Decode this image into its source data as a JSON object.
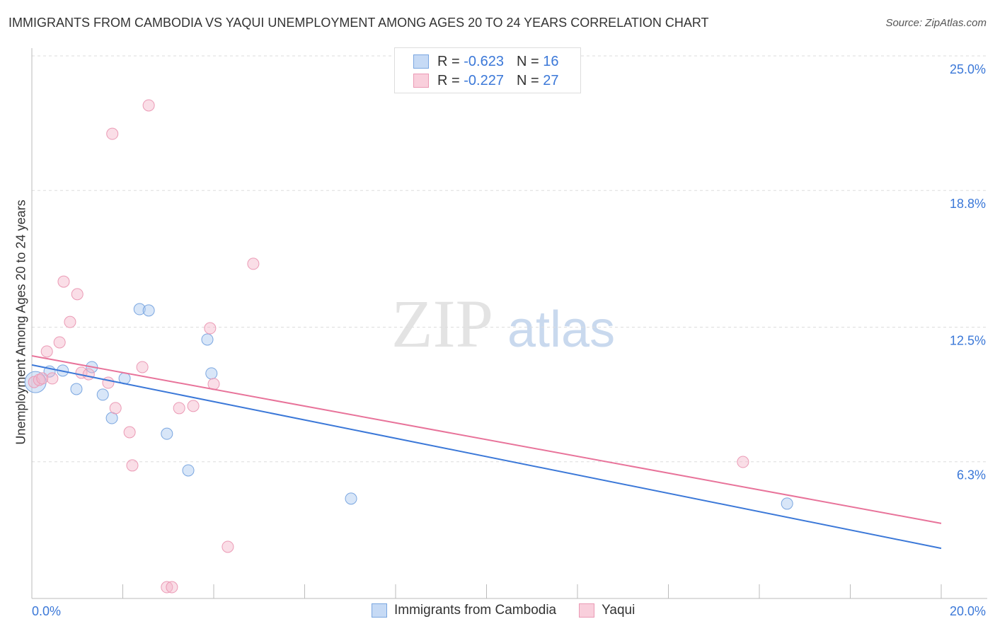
{
  "title": "IMMIGRANTS FROM CAMBODIA VS YAQUI UNEMPLOYMENT AMONG AGES 20 TO 24 YEARS CORRELATION CHART",
  "source": "Source: ZipAtlas.com",
  "watermark": "ZIPatlas",
  "legend": {
    "rows": [
      {
        "r_label": "R =",
        "r": "-0.623",
        "n_label": "N =",
        "n": "16"
      },
      {
        "r_label": "R =",
        "r": "-0.227",
        "n_label": "N =",
        "n": "27"
      }
    ]
  },
  "colors": {
    "blue": "#3b78d8",
    "blue_fill": "#a8c8f0",
    "pink": "#e8739a",
    "pink_fill": "#f4b6c9"
  },
  "chart_data": {
    "type": "scatter",
    "title": "IMMIGRANTS FROM CAMBODIA VS YAQUI UNEMPLOYMENT AMONG AGES 20 TO 24 YEARS CORRELATION CHART",
    "xlabel": "",
    "ylabel": "Unemployment Among Ages 20 to 24 years",
    "xlim": [
      0,
      20
    ],
    "ylim": [
      0,
      25
    ],
    "x_tick_labels": [
      "0.0%",
      "20.0%"
    ],
    "y_ticks": [
      6.3,
      12.5,
      18.8,
      25.0
    ],
    "y_tick_labels": [
      "6.3%",
      "12.5%",
      "18.8%",
      "25.0%"
    ],
    "grid": true,
    "legend_placement": "bottom",
    "series": [
      {
        "name": "Immigrants from Cambodia",
        "color": "#3b78d8",
        "points": [
          [
            0.08,
            9.97
          ],
          [
            0.39,
            10.46
          ],
          [
            0.68,
            10.5
          ],
          [
            0.98,
            9.65
          ],
          [
            1.32,
            10.66
          ],
          [
            1.56,
            9.39
          ],
          [
            1.76,
            8.31
          ],
          [
            2.04,
            10.14
          ],
          [
            2.37,
            13.33
          ],
          [
            2.57,
            13.27
          ],
          [
            2.97,
            7.59
          ],
          [
            3.44,
            5.9
          ],
          [
            3.86,
            11.93
          ],
          [
            3.95,
            10.37
          ],
          [
            7.02,
            4.6
          ],
          [
            16.61,
            4.37
          ]
        ],
        "trend": [
          [
            0,
            10.76
          ],
          [
            20,
            2.31
          ]
        ]
      },
      {
        "name": "Yaqui",
        "color": "#e8739a",
        "points": [
          [
            0.05,
            9.97
          ],
          [
            0.16,
            10.07
          ],
          [
            0.23,
            10.14
          ],
          [
            0.33,
            11.38
          ],
          [
            0.45,
            10.14
          ],
          [
            0.61,
            11.8
          ],
          [
            0.7,
            14.6
          ],
          [
            0.84,
            12.74
          ],
          [
            1.0,
            14.02
          ],
          [
            1.09,
            10.4
          ],
          [
            1.25,
            10.33
          ],
          [
            1.68,
            9.94
          ],
          [
            1.77,
            21.41
          ],
          [
            1.84,
            8.77
          ],
          [
            2.15,
            7.66
          ],
          [
            2.21,
            6.13
          ],
          [
            2.43,
            10.66
          ],
          [
            2.57,
            22.72
          ],
          [
            2.97,
            0.52
          ],
          [
            3.08,
            0.52
          ],
          [
            3.24,
            8.77
          ],
          [
            3.55,
            8.87
          ],
          [
            3.92,
            12.45
          ],
          [
            4.0,
            9.88
          ],
          [
            4.31,
            2.38
          ],
          [
            4.87,
            15.42
          ],
          [
            15.64,
            6.29
          ]
        ],
        "trend": [
          [
            0,
            11.18
          ],
          [
            20,
            3.46
          ]
        ]
      }
    ]
  }
}
